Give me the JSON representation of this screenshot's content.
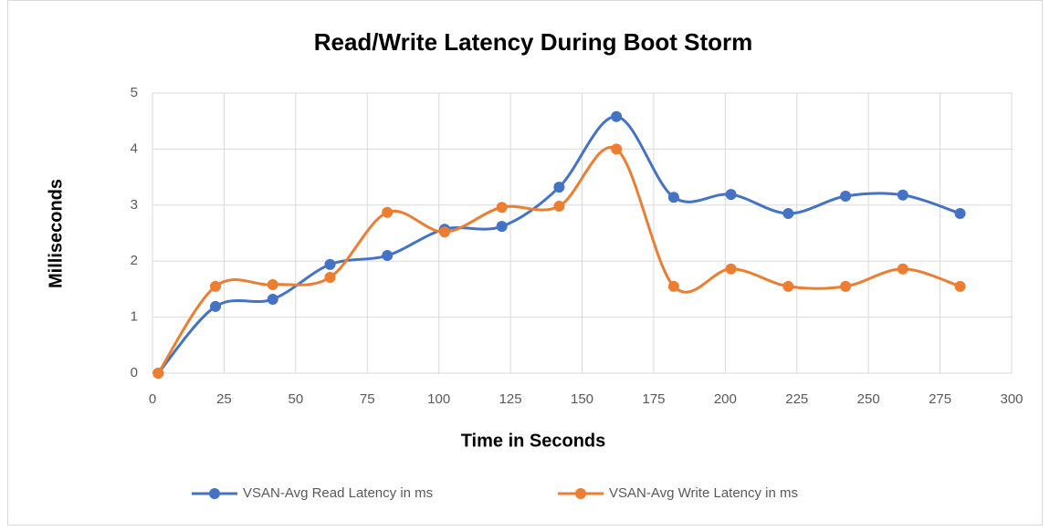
{
  "chart_data": {
    "type": "line",
    "title": "Read/Write Latency During Boot Storm",
    "x_label": "Time in Seconds",
    "y_label": "Milliseconds",
    "x": [
      2,
      22,
      42,
      62,
      82,
      102,
      122,
      142,
      162,
      182,
      202,
      222,
      242,
      262,
      282
    ],
    "series": [
      {
        "name": "VSAN-Avg Read Latency in ms",
        "color": "#4472c4",
        "values": [
          0,
          1.19,
          1.32,
          1.94,
          2.1,
          2.57,
          2.62,
          3.32,
          4.58,
          3.14,
          3.19,
          2.85,
          3.16,
          3.18,
          2.85
        ]
      },
      {
        "name": "VSAN-Avg Write Latency in ms",
        "color": "#ed7d31",
        "values": [
          0,
          1.55,
          1.58,
          1.71,
          2.87,
          2.52,
          2.96,
          2.98,
          4.0,
          1.55,
          1.86,
          1.55,
          1.55,
          1.86,
          1.55
        ]
      }
    ],
    "xlim": [
      0,
      300
    ],
    "xticks": [
      0,
      25,
      50,
      75,
      100,
      125,
      150,
      175,
      200,
      225,
      250,
      275,
      300
    ],
    "ylim": [
      0,
      5
    ],
    "yticks": [
      0,
      1,
      2,
      3,
      4,
      5
    ],
    "grid": true,
    "smooth": true,
    "legend": "bottom"
  }
}
